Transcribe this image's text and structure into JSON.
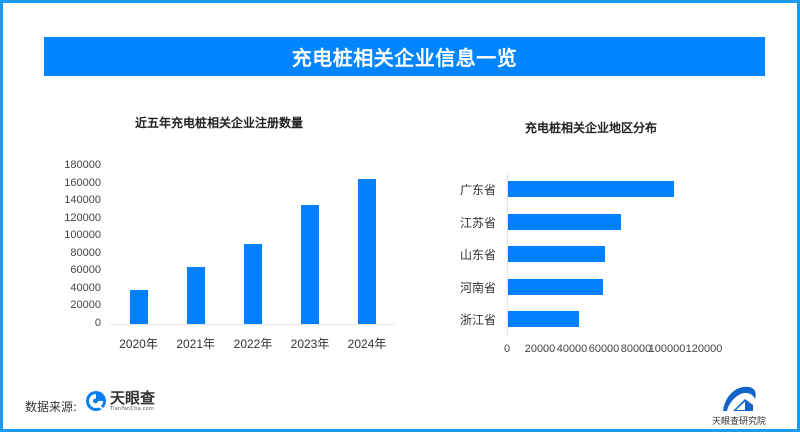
{
  "header": {
    "title": "充电桩相关企业信息一览"
  },
  "colors": {
    "accent": "#0080ff",
    "frame": "#1e9bf0",
    "header_bg": "#0085ff"
  },
  "chart_data": [
    {
      "type": "bar",
      "title": "近五年充电桩相关企业注册数量",
      "categories": [
        "2020年",
        "2021年",
        "2022年",
        "2023年",
        "2024年"
      ],
      "values": [
        39000,
        65000,
        91500,
        136000,
        165500
      ],
      "xlabel": "",
      "ylabel": "",
      "ylim": [
        0,
        180000
      ],
      "yticks": [
        "0",
        "20000",
        "40000",
        "60000",
        "80000",
        "100000",
        "120000",
        "140000",
        "160000",
        "180000"
      ],
      "grid": false,
      "legend": null
    },
    {
      "type": "bar",
      "orientation": "horizontal",
      "title": "充电桩相关企业地区分布",
      "categories": [
        "广东省",
        "江苏省",
        "山东省",
        "河南省",
        "浙江省"
      ],
      "values": [
        102000,
        69700,
        59900,
        58200,
        43700
      ],
      "xlabel": "",
      "ylabel": "",
      "xlim": [
        0,
        120000
      ],
      "xticks": [
        "0",
        "20000",
        "40000",
        "60000",
        "80000",
        "100000",
        "120000"
      ],
      "grid": false,
      "legend": null
    }
  ],
  "footer": {
    "source_label": "数据来源:",
    "source_logo_name": "天眼查",
    "source_logo_url_text": "TianYanCha.com",
    "institute_name": "天眼查研究院"
  }
}
